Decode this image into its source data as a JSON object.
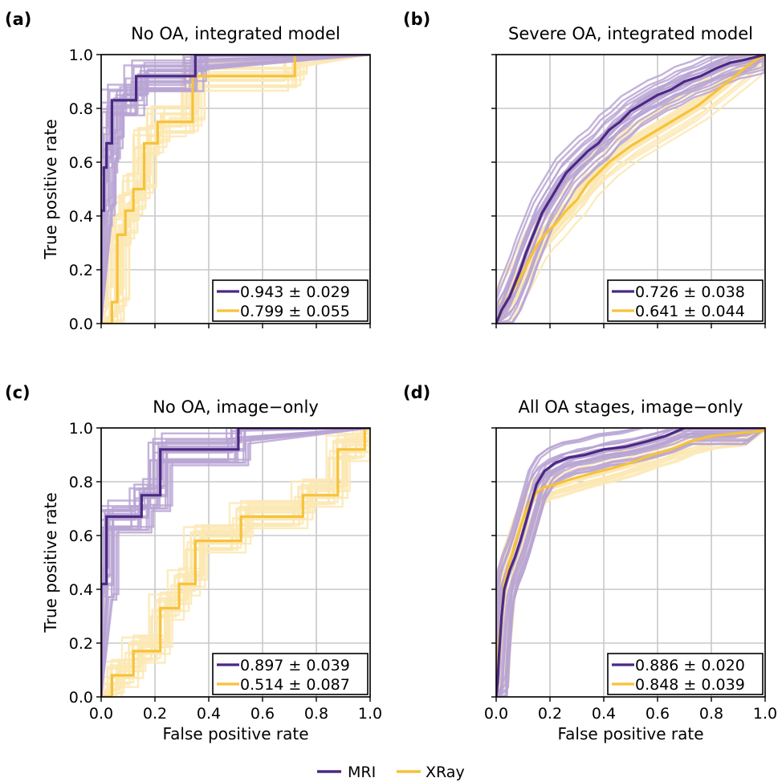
{
  "colors": {
    "mri": "#4b2884",
    "xray": "#f7c238",
    "mri_boot": "#b9a4d4",
    "xray_boot": "#fbe7b3",
    "grid": "#c8c8c8"
  },
  "legend": {
    "entries": [
      {
        "label": "MRI",
        "color": "#4b2884"
      },
      {
        "label": "XRay",
        "color": "#f7c238"
      }
    ],
    "placement": "bottom-center"
  },
  "chart_data": [
    {
      "type": "line",
      "panel_label": "(a)",
      "title": "No OA, integrated model",
      "xlabel": "",
      "ylabel": "True positive rate",
      "xlim": [
        0,
        1
      ],
      "ylim": [
        0,
        1
      ],
      "xticks": [],
      "yticks": [
        "0.0",
        "0.2",
        "0.4",
        "0.6",
        "0.8",
        "1.0"
      ],
      "grid": true,
      "series": [
        {
          "name": "MRI",
          "auc_label": "0.943 ± 0.029",
          "x": [
            0,
            0,
            0.01,
            0.01,
            0.02,
            0.02,
            0.04,
            0.04,
            0.13,
            0.13,
            0.35,
            0.35,
            1.0
          ],
          "y": [
            0,
            0.42,
            0.42,
            0.58,
            0.58,
            0.67,
            0.67,
            0.83,
            0.83,
            0.92,
            0.92,
            1.0,
            1.0
          ]
        },
        {
          "name": "XRay",
          "auc_label": "0.799 ± 0.055",
          "x": [
            0,
            0.04,
            0.04,
            0.06,
            0.06,
            0.09,
            0.09,
            0.12,
            0.12,
            0.16,
            0.16,
            0.21,
            0.21,
            0.34,
            0.34,
            0.56,
            0.56,
            0.72,
            0.72,
            1.0
          ],
          "y": [
            0,
            0,
            0.08,
            0.08,
            0.33,
            0.33,
            0.42,
            0.42,
            0.5,
            0.5,
            0.67,
            0.67,
            0.75,
            0.75,
            0.92,
            0.92,
            0.92,
            0.92,
            1.0,
            1.0
          ]
        }
      ],
      "bootstrap_runs": true
    },
    {
      "type": "line",
      "panel_label": "(b)",
      "title": "Severe OA, integrated model",
      "xlabel": "",
      "ylabel": "",
      "xlim": [
        0,
        1
      ],
      "ylim": [
        0,
        1
      ],
      "xticks": [],
      "yticks": [],
      "grid": true,
      "series": [
        {
          "name": "MRI",
          "auc_label": "0.726 ± 0.038",
          "x": [
            0,
            0.02,
            0.05,
            0.07,
            0.09,
            0.11,
            0.13,
            0.15,
            0.17,
            0.2,
            0.23,
            0.26,
            0.3,
            0.34,
            0.38,
            0.42,
            0.46,
            0.5,
            0.55,
            0.6,
            0.65,
            0.7,
            0.76,
            0.82,
            0.87,
            0.92,
            0.96,
            1.0
          ],
          "y": [
            0,
            0.05,
            0.1,
            0.15,
            0.2,
            0.26,
            0.31,
            0.36,
            0.41,
            0.46,
            0.51,
            0.56,
            0.6,
            0.64,
            0.67,
            0.72,
            0.75,
            0.79,
            0.82,
            0.85,
            0.87,
            0.9,
            0.92,
            0.95,
            0.97,
            0.98,
            0.99,
            1.0
          ]
        },
        {
          "name": "XRay",
          "auc_label": "0.641 ± 0.044",
          "x": [
            0,
            0.03,
            0.06,
            0.09,
            0.12,
            0.15,
            0.18,
            0.22,
            0.26,
            0.3,
            0.34,
            0.38,
            0.42,
            0.46,
            0.5,
            0.55,
            0.6,
            0.65,
            0.7,
            0.75,
            0.8,
            0.85,
            0.9,
            0.95,
            1.0
          ],
          "y": [
            0,
            0.07,
            0.12,
            0.17,
            0.23,
            0.29,
            0.33,
            0.37,
            0.42,
            0.46,
            0.52,
            0.56,
            0.6,
            0.63,
            0.66,
            0.69,
            0.72,
            0.75,
            0.78,
            0.81,
            0.85,
            0.89,
            0.93,
            0.97,
            1.0
          ]
        }
      ],
      "bootstrap_runs": true
    },
    {
      "type": "line",
      "panel_label": "(c)",
      "title": "No OA, image−only",
      "xlabel": "False positive rate",
      "ylabel": "True positive rate",
      "xlim": [
        0,
        1
      ],
      "ylim": [
        0,
        1
      ],
      "xticks": [
        "0.0",
        "0.2",
        "0.4",
        "0.6",
        "0.8",
        "1.0"
      ],
      "yticks": [
        "0.0",
        "0.2",
        "0.4",
        "0.6",
        "0.8",
        "1.0"
      ],
      "grid": true,
      "series": [
        {
          "name": "MRI",
          "auc_label": "0.897 ± 0.039",
          "x": [
            0,
            0,
            0.02,
            0.02,
            0.15,
            0.15,
            0.22,
            0.22,
            0.51,
            0.51,
            1.0
          ],
          "y": [
            0,
            0.42,
            0.42,
            0.67,
            0.67,
            0.75,
            0.75,
            0.92,
            0.92,
            1.0,
            1.0
          ]
        },
        {
          "name": "XRay",
          "auc_label": "0.514 ± 0.087",
          "x": [
            0,
            0.04,
            0.04,
            0.12,
            0.12,
            0.22,
            0.22,
            0.29,
            0.29,
            0.35,
            0.35,
            0.52,
            0.52,
            0.75,
            0.75,
            0.88,
            0.88,
            0.98,
            0.98,
            1.0
          ],
          "y": [
            0,
            0,
            0.08,
            0.08,
            0.17,
            0.17,
            0.33,
            0.33,
            0.42,
            0.42,
            0.58,
            0.58,
            0.67,
            0.67,
            0.75,
            0.75,
            0.92,
            0.92,
            1.0,
            1.0
          ]
        }
      ],
      "bootstrap_runs": true
    },
    {
      "type": "line",
      "panel_label": "(d)",
      "title": "All OA stages, image−only",
      "xlabel": "False positive rate",
      "ylabel": "",
      "xlim": [
        0,
        1
      ],
      "ylim": [
        0,
        1
      ],
      "xticks": [
        "0.0",
        "0.2",
        "0.4",
        "0.6",
        "0.8",
        "1.0"
      ],
      "yticks": [],
      "grid": true,
      "series": [
        {
          "name": "MRI",
          "auc_label": "0.886 ± 0.020",
          "x": [
            0,
            0.005,
            0.01,
            0.02,
            0.03,
            0.05,
            0.07,
            0.09,
            0.11,
            0.13,
            0.15,
            0.18,
            0.22,
            0.27,
            0.33,
            0.4,
            0.48,
            0.56,
            0.63,
            0.7,
            0.8,
            0.9,
            1.0
          ],
          "y": [
            0,
            0.05,
            0.15,
            0.3,
            0.4,
            0.47,
            0.52,
            0.58,
            0.65,
            0.72,
            0.79,
            0.84,
            0.87,
            0.89,
            0.9,
            0.92,
            0.93,
            0.95,
            0.97,
            1.0,
            1.0,
            1.0,
            1.0
          ]
        },
        {
          "name": "XRay",
          "auc_label": "0.848 ± 0.039",
          "x": [
            0,
            0.005,
            0.01,
            0.02,
            0.03,
            0.05,
            0.07,
            0.09,
            0.11,
            0.13,
            0.15,
            0.18,
            0.22,
            0.28,
            0.35,
            0.43,
            0.5,
            0.58,
            0.65,
            0.72,
            0.8,
            0.9,
            1.0
          ],
          "y": [
            0,
            0.08,
            0.2,
            0.3,
            0.42,
            0.5,
            0.57,
            0.63,
            0.69,
            0.73,
            0.76,
            0.78,
            0.79,
            0.81,
            0.83,
            0.85,
            0.87,
            0.9,
            0.92,
            0.95,
            0.97,
            0.98,
            0.99
          ]
        }
      ],
      "bootstrap_runs": true
    }
  ]
}
